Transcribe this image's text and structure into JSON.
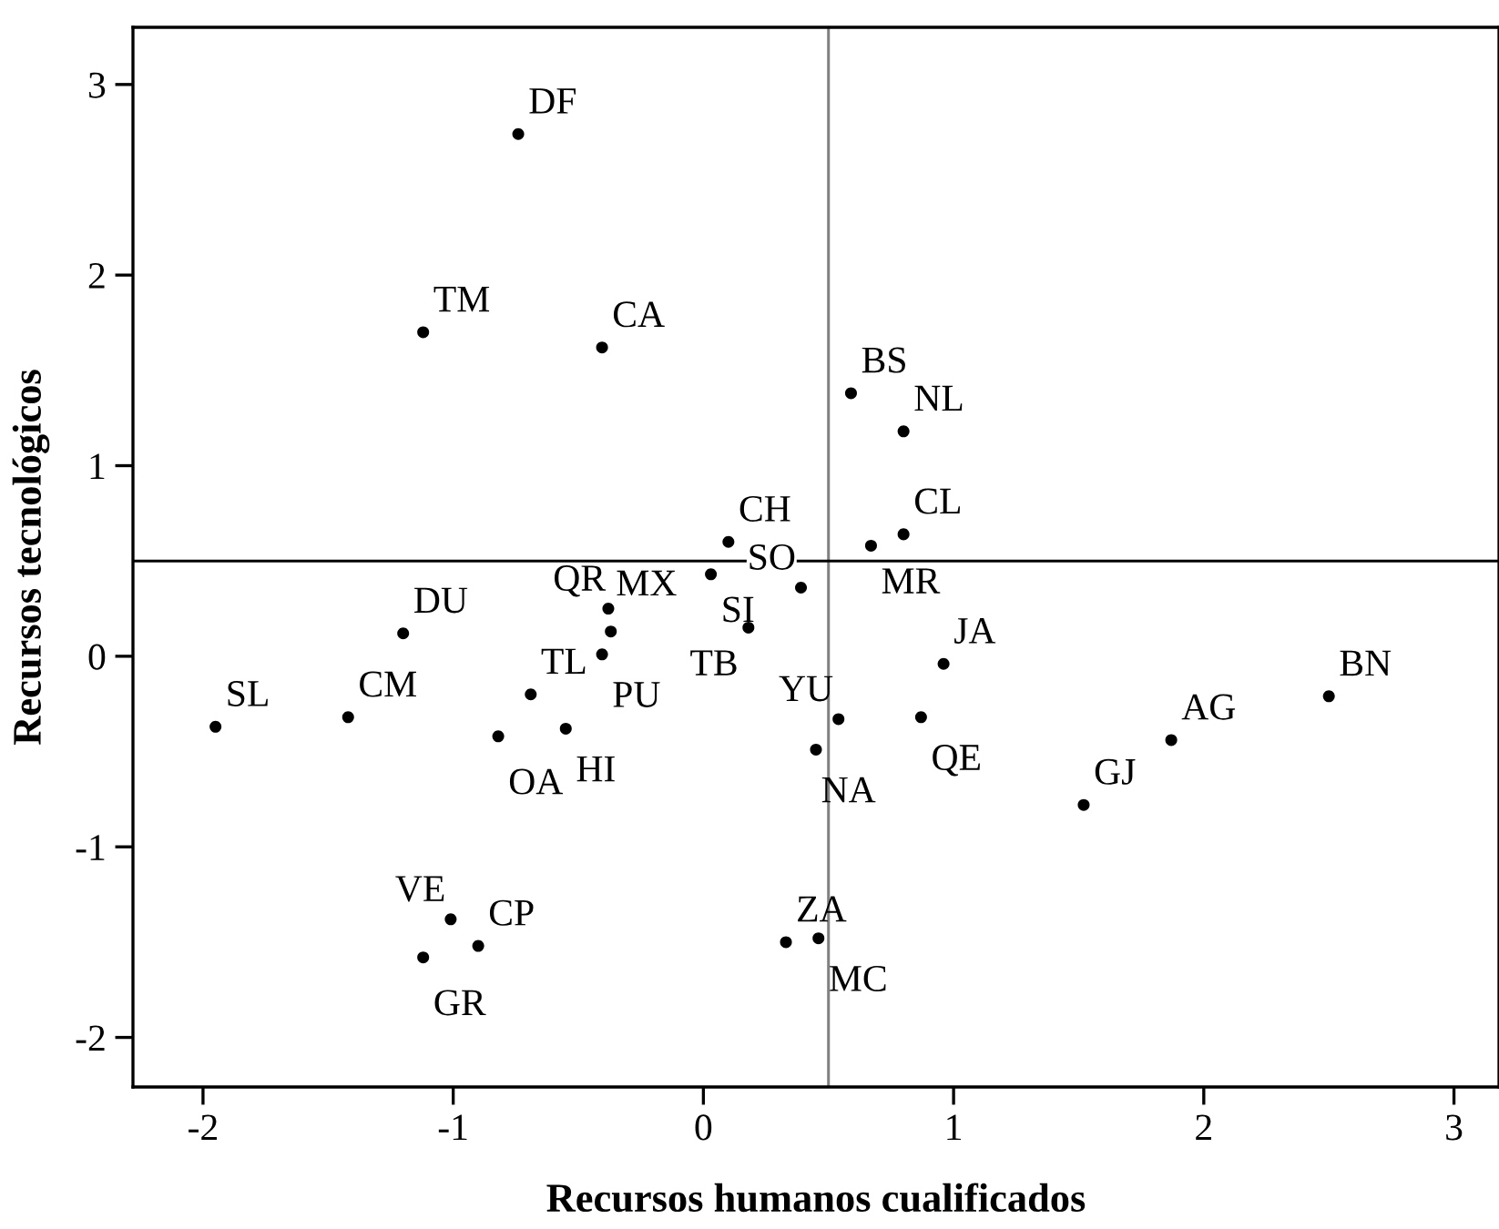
{
  "chart_data": {
    "type": "scatter",
    "xlabel": "Recursos humanos cualificados",
    "ylabel": "Recursos tecnológicos",
    "xlim": [
      -2.28,
      3.18
    ],
    "ylim": [
      -2.26,
      3.3
    ],
    "xticks": [
      -2,
      -1,
      0,
      1,
      2,
      3
    ],
    "yticks": [
      -2,
      -1,
      0,
      1,
      2,
      3
    ],
    "grid": false,
    "marker": "circle",
    "series": [
      {
        "color": "#000000",
        "x": [
          -0.74,
          -1.12,
          -0.405,
          0.1,
          0.59,
          0.8,
          0.8,
          0.67,
          0.39,
          0.03,
          0.18,
          0.96,
          0.54,
          0.87,
          0.45,
          1.52,
          1.87,
          2.5,
          -0.38,
          -0.37,
          -0.405,
          -0.69,
          -0.55,
          -0.82,
          -1.2,
          -1.42,
          -1.95,
          -1.01,
          -0.9,
          -1.12,
          0.33,
          0.46
        ],
        "values": [
          2.74,
          1.7,
          1.62,
          0.6,
          1.38,
          1.18,
          0.64,
          0.58,
          0.36,
          0.43,
          0.15,
          -0.04,
          -0.33,
          -0.32,
          -0.49,
          -0.78,
          -0.44,
          -0.21,
          0.25,
          0.13,
          0.01,
          -0.2,
          -0.38,
          -0.42,
          0.12,
          -0.32,
          -0.37,
          -1.38,
          -1.52,
          -1.58,
          -1.5,
          -1.48
        ]
      }
    ],
    "ref_lines": [
      {
        "axis": "x",
        "value": 0.5,
        "color": "#808080"
      },
      {
        "axis": "y",
        "value": 0.5,
        "color": "#000000"
      }
    ],
    "annotations": [
      {
        "text": "DF",
        "x": -0.74,
        "y": 2.74
      },
      {
        "text": "TM",
        "x": -1.12,
        "y": 1.7
      },
      {
        "text": "CA",
        "x": -0.405,
        "y": 1.62
      },
      {
        "text": "CH",
        "x": 0.1,
        "y": 0.6
      },
      {
        "text": "BS",
        "x": 0.59,
        "y": 1.38
      },
      {
        "text": "NL",
        "x": 0.8,
        "y": 1.18
      },
      {
        "text": "CL",
        "x": 0.8,
        "y": 0.64
      },
      {
        "text": "MR",
        "x": 0.67,
        "y": 0.58
      },
      {
        "text": "SO",
        "x": 0.39,
        "y": 0.36
      },
      {
        "text": "SI",
        "x": 0.03,
        "y": 0.43
      },
      {
        "text": "TB",
        "x": 0.18,
        "y": 0.15
      },
      {
        "text": "JA",
        "x": 0.96,
        "y": -0.04
      },
      {
        "text": "YU",
        "x": 0.54,
        "y": -0.33
      },
      {
        "text": "QE",
        "x": 0.87,
        "y": -0.32
      },
      {
        "text": "NA",
        "x": 0.45,
        "y": -0.49
      },
      {
        "text": "GJ",
        "x": 1.52,
        "y": -0.78
      },
      {
        "text": "AG",
        "x": 1.87,
        "y": -0.44
      },
      {
        "text": "BN",
        "x": 2.5,
        "y": -0.21
      },
      {
        "text": "MX",
        "x": -0.38,
        "y": 0.25
      },
      {
        "text": "QR",
        "x": -0.37,
        "y": 0.13
      },
      {
        "text": "PU",
        "x": -0.405,
        "y": 0.01
      },
      {
        "text": "TL",
        "x": -0.69,
        "y": -0.2
      },
      {
        "text": "HI",
        "x": -0.55,
        "y": -0.38
      },
      {
        "text": "OA",
        "x": -0.82,
        "y": -0.42
      },
      {
        "text": "DU",
        "x": -1.2,
        "y": 0.12
      },
      {
        "text": "CM",
        "x": -1.42,
        "y": -0.32
      },
      {
        "text": "SL",
        "x": -1.95,
        "y": -0.37
      },
      {
        "text": "VE",
        "x": -1.01,
        "y": -1.38
      },
      {
        "text": "CP",
        "x": -0.9,
        "y": -1.52
      },
      {
        "text": "GR",
        "x": -1.12,
        "y": -1.58
      },
      {
        "text": "ZA",
        "x": 0.33,
        "y": -1.5
      },
      {
        "text": "MC",
        "x": 0.46,
        "y": -1.48
      }
    ]
  }
}
